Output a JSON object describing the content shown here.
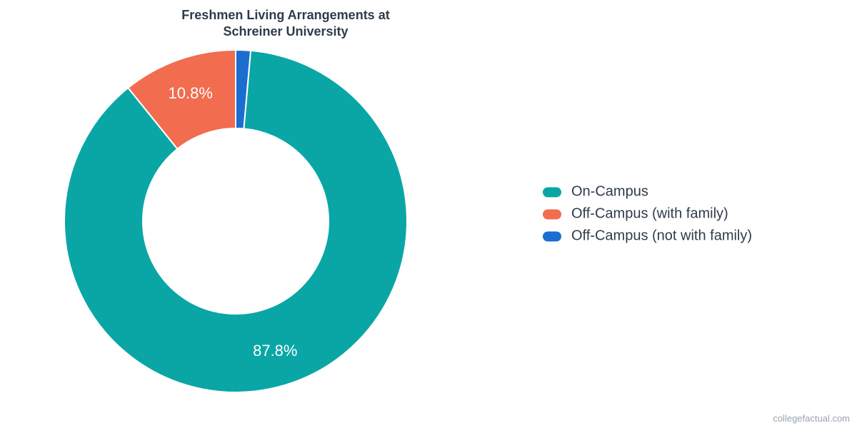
{
  "chart": {
    "type": "donut",
    "title": "Freshmen Living Arrangements at\nSchreiner University",
    "title_fontsize": 18,
    "title_color": "#2f3b4b",
    "background_color": "#ffffff",
    "outer_radius": 240,
    "inner_radius": 130,
    "start_angle_deg": -90,
    "direction": "clockwise",
    "label_fontsize": 22,
    "label_color": "#ffffff",
    "label_radius": 190,
    "slices": [
      {
        "name": "Off-Campus (not with family)",
        "value": 1.4,
        "color": "#1c6dd0",
        "show_label": false,
        "label": ""
      },
      {
        "name": "On-Campus",
        "value": 87.8,
        "color": "#0aa6a6",
        "show_label": true,
        "label": "87.8%"
      },
      {
        "name": "Off-Campus (with family)",
        "value": 10.8,
        "color": "#f26c4f",
        "show_label": true,
        "label": "10.8%"
      }
    ],
    "legend": {
      "fontsize": 20,
      "text_color": "#2f3b4b",
      "items": [
        {
          "label": "On-Campus",
          "color": "#0aa6a6"
        },
        {
          "label": "Off-Campus (with family)",
          "color": "#f26c4f"
        },
        {
          "label": "Off-Campus (not with family)",
          "color": "#1c6dd0"
        }
      ]
    },
    "attribution": {
      "text": "collegefactual.com",
      "color": "#9aa3ad",
      "fontsize": 13
    }
  }
}
